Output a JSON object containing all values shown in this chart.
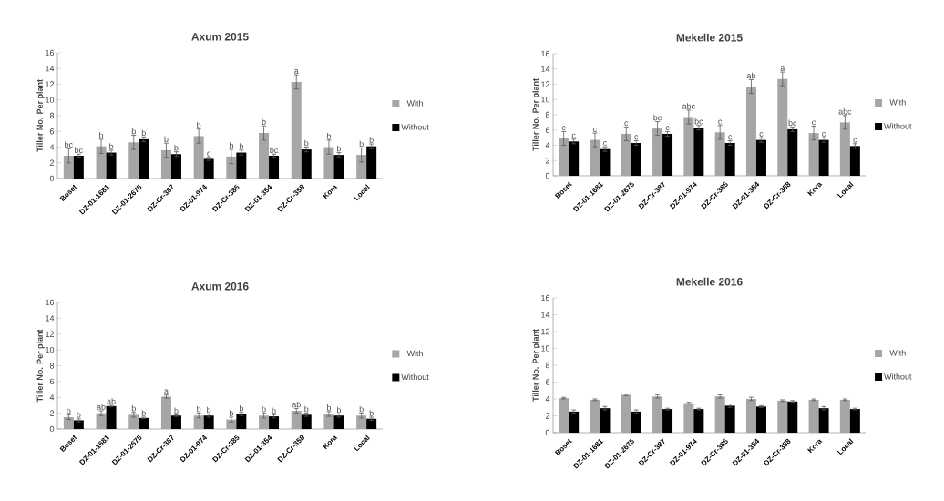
{
  "chart_data": [
    {
      "type": "bar",
      "title": "Axum 2015",
      "ylabel": "Tiller No. Per plant",
      "categories": [
        "Boset",
        "DZ-01-1681",
        "DZ-01-2675",
        "DZ-Cr-387",
        "DZ-01-974",
        "DZ-Cr-385",
        "DZ-01-354",
        "DZ-Cr-358",
        "Kora",
        "Local"
      ],
      "ylim": [
        0,
        16
      ],
      "yticks": [
        0,
        2,
        4,
        6,
        8,
        10,
        12,
        14,
        16
      ],
      "legend": "right",
      "series": [
        {
          "name": "With",
          "color": "#a6a6a6",
          "values": [
            2.9,
            4.1,
            4.6,
            3.6,
            5.4,
            2.8,
            5.8,
            12.3,
            4.0,
            3.0
          ],
          "errors": [
            0.9,
            0.9,
            0.9,
            0.9,
            0.9,
            0.9,
            0.9,
            0.9,
            0.9,
            0.9
          ],
          "value_labels": [
            "bc",
            "b",
            "b",
            "b",
            "b",
            "b",
            "b",
            "a",
            "b",
            "b"
          ]
        },
        {
          "name": "Without",
          "color": "#000000",
          "values": [
            2.9,
            3.3,
            5.0,
            3.1,
            2.5,
            3.3,
            2.9,
            3.7,
            3.0,
            4.1
          ],
          "errors": [
            0.2,
            0.3,
            0.3,
            0.3,
            0.2,
            0.3,
            0.2,
            0.3,
            0.3,
            0.3
          ],
          "value_labels": [
            "bc",
            "b",
            "b",
            "b",
            "c",
            "b",
            "bc",
            "b",
            "b",
            "b"
          ]
        }
      ]
    },
    {
      "type": "bar",
      "title": "Mekelle 2015",
      "ylabel": "Tiller No. Per plant",
      "categories": [
        "Boset",
        "DZ-01-1681",
        "DZ-01-2675",
        "DZ-Cr-387",
        "DZ-01-974",
        "DZ-Cr-385",
        "DZ-01-354",
        "DZ-Cr-358",
        "Kora",
        "Local"
      ],
      "ylim": [
        0,
        16
      ],
      "yticks": [
        0,
        2,
        4,
        6,
        8,
        10,
        12,
        14,
        16
      ],
      "legend": "right",
      "series": [
        {
          "name": "With",
          "color": "#a6a6a6",
          "values": [
            4.9,
            4.7,
            5.5,
            6.2,
            7.7,
            5.7,
            11.7,
            12.7,
            5.6,
            7.0
          ],
          "errors": [
            0.9,
            0.9,
            0.9,
            0.9,
            0.9,
            0.9,
            0.9,
            0.9,
            0.9,
            0.9
          ],
          "value_labels": [
            "c",
            "c",
            "c",
            "bc",
            "abc",
            "c",
            "ab",
            "a",
            "c",
            "abc"
          ]
        },
        {
          "name": "Without",
          "color": "#000000",
          "values": [
            4.5,
            3.5,
            4.3,
            5.5,
            6.3,
            4.3,
            4.7,
            6.1,
            4.7,
            3.9
          ],
          "errors": [
            0.3,
            0.3,
            0.3,
            0.3,
            0.3,
            0.3,
            0.3,
            0.3,
            0.3,
            0.3
          ],
          "value_labels": [
            "c",
            "c",
            "c",
            "c",
            "bc",
            "c",
            "c",
            "bc",
            "c",
            "c"
          ]
        }
      ]
    },
    {
      "type": "bar",
      "title": "Axum 2016",
      "ylabel": "Tiller No. Per plant",
      "categories": [
        "Boset",
        "DZ-01-1681",
        "DZ-01-2675",
        "DZ-Cr-387",
        "DZ-01-974",
        "DZ-Cr-385",
        "DZ-01-354",
        "DZ-Cr-358",
        "Kora",
        "Local"
      ],
      "ylim": [
        0,
        16
      ],
      "yticks": [
        0,
        2,
        4,
        6,
        8,
        10,
        12,
        14,
        16
      ],
      "legend": "right",
      "series": [
        {
          "name": "With",
          "color": "#a6a6a6",
          "values": [
            1.5,
            2.0,
            1.8,
            4.1,
            1.7,
            1.2,
            1.7,
            2.3,
            1.9,
            1.7
          ],
          "errors": [
            0.3,
            0.3,
            0.3,
            0.2,
            0.3,
            0.3,
            0.3,
            0.3,
            0.3,
            0.3
          ],
          "value_labels": [
            "b",
            "ab",
            "b",
            "a",
            "b",
            "b",
            "b",
            "ab",
            "b",
            "b"
          ]
        },
        {
          "name": "Without",
          "color": "#000000",
          "values": [
            1.1,
            2.9,
            1.4,
            1.7,
            1.7,
            1.9,
            1.6,
            1.8,
            1.7,
            1.3
          ],
          "errors": [
            0.2,
            0.1,
            0.1,
            0.1,
            0.2,
            0.2,
            0.2,
            0.2,
            0.2,
            0.2
          ],
          "value_labels": [
            "b",
            "ab",
            "b",
            "b",
            "b",
            "b",
            "b",
            "b",
            "b",
            "b"
          ]
        }
      ]
    },
    {
      "type": "bar",
      "title": "Mekelle 2016",
      "ylabel": "Tiller No. Per plant",
      "categories": [
        "Boset",
        "DZ-01-1681",
        "DZ-01-2675",
        "DZ-Cr-387",
        "DZ-01-974",
        "DZ-Cr-385",
        "DZ-01-354",
        "DZ-Cr-358",
        "Kora",
        "Local"
      ],
      "ylim": [
        0,
        16
      ],
      "yticks": [
        0,
        2,
        4,
        6,
        8,
        10,
        12,
        14,
        16
      ],
      "legend": "right",
      "series": [
        {
          "name": "With",
          "color": "#a6a6a6",
          "values": [
            4.1,
            3.9,
            4.5,
            4.3,
            3.5,
            4.3,
            4.0,
            3.8,
            3.9,
            3.9
          ],
          "errors": [
            0.1,
            0.1,
            0.1,
            0.2,
            0.1,
            0.2,
            0.2,
            0.1,
            0.1,
            0.1
          ]
        },
        {
          "name": "Without",
          "color": "#000000",
          "values": [
            2.5,
            2.9,
            2.5,
            2.8,
            2.8,
            3.2,
            3.1,
            3.7,
            2.9,
            2.8
          ],
          "errors": [
            0.2,
            0.2,
            0.2,
            0.1,
            0.1,
            0.2,
            0.1,
            0.1,
            0.2,
            0.1
          ]
        }
      ]
    }
  ]
}
